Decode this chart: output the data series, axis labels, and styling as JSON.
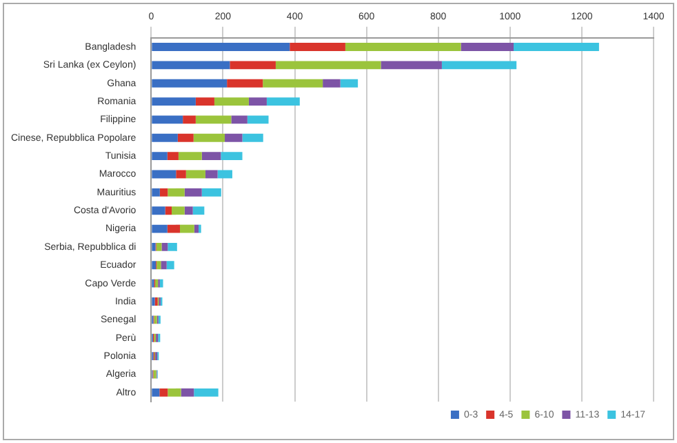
{
  "chart_data": {
    "type": "bar",
    "orientation": "horizontal",
    "stacked": true,
    "categories": [
      "Bangladesh",
      "Sri Lanka (ex Ceylon)",
      "Ghana",
      "Romania",
      "Filippine",
      "Cinese, Repubblica Popolare",
      "Tunisia",
      "Marocco",
      "Mauritius",
      "Costa d'Avorio",
      "Nigeria",
      "Serbia, Repubblica di",
      "Ecuador",
      "Capo Verde",
      "India",
      "Senegal",
      "Perù",
      "Polonia",
      "Algeria",
      "Altro"
    ],
    "series": [
      {
        "name": "0-3",
        "color": "#3a6fc4",
        "values": [
          386,
          219,
          211,
          124,
          88,
          74,
          45,
          69,
          24,
          39,
          45,
          12,
          13,
          8,
          10,
          6,
          5,
          6,
          4,
          23
        ]
      },
      {
        "name": "4-5",
        "color": "#d9342b",
        "values": [
          155,
          128,
          100,
          52,
          36,
          44,
          31,
          28,
          22,
          18,
          35,
          2,
          2,
          3,
          8,
          2,
          3,
          3,
          2,
          23
        ]
      },
      {
        "name": "6-10",
        "color": "#9bc43c",
        "values": [
          322,
          293,
          167,
          96,
          99,
          87,
          65,
          54,
          47,
          36,
          40,
          15,
          12,
          8,
          3,
          8,
          5,
          2,
          8,
          37
        ]
      },
      {
        "name": "11-13",
        "color": "#7d54a6",
        "values": [
          147,
          170,
          49,
          50,
          45,
          49,
          53,
          34,
          48,
          23,
          12,
          17,
          16,
          5,
          5,
          4,
          6,
          6,
          2,
          36
        ]
      },
      {
        "name": "14-17",
        "color": "#3cc3e0",
        "values": [
          238,
          208,
          49,
          92,
          59,
          58,
          60,
          41,
          54,
          32,
          7,
          26,
          21,
          9,
          5,
          6,
          6,
          4,
          2,
          68
        ]
      }
    ],
    "xlim": [
      0,
      1400
    ],
    "xticks": [
      0,
      200,
      400,
      600,
      800,
      1000,
      1200,
      1400
    ],
    "grid": "x",
    "legend": "bottom right"
  }
}
